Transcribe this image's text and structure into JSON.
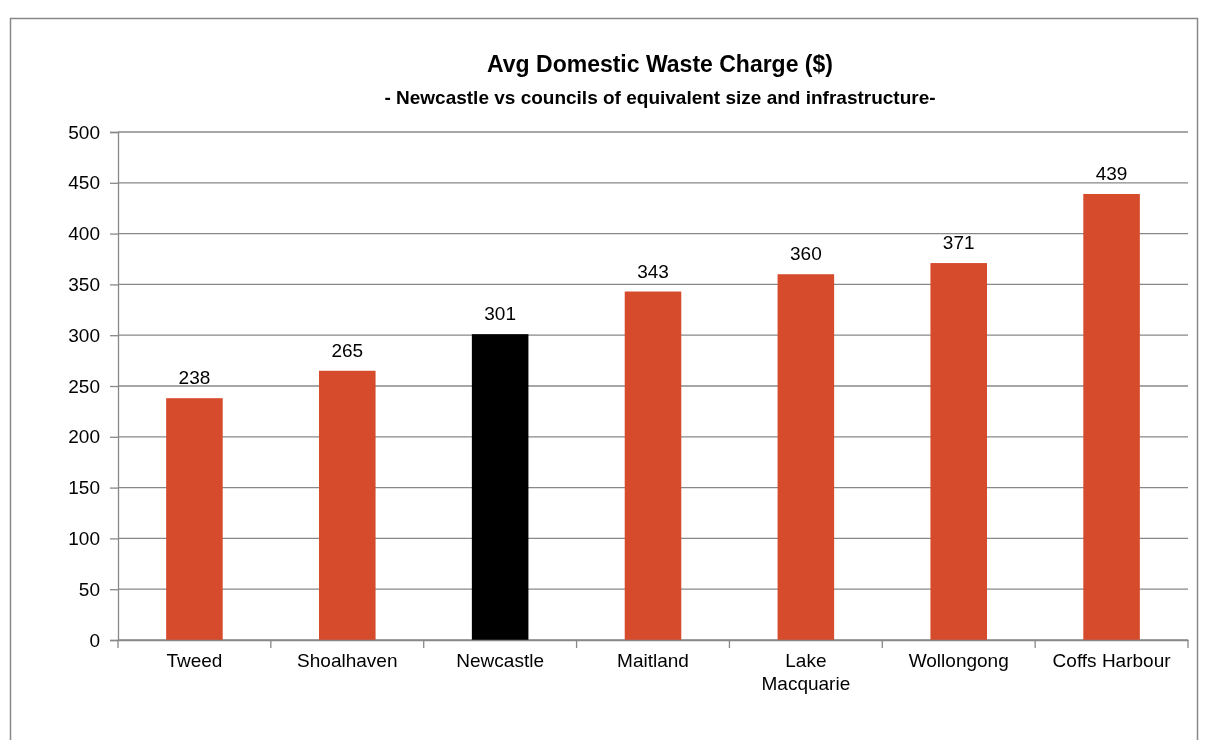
{
  "chart_data": {
    "type": "bar",
    "title": "Avg Domestic Waste Charge ($)",
    "subtitle": "- Newcastle vs councils of equivalent size and infrastructure-",
    "categories": [
      "Tweed",
      "Shoalhaven",
      "Newcastle",
      "Maitland",
      "Lake Macquarie",
      "Wollongong",
      "Coffs Harbour"
    ],
    "values": [
      238,
      265,
      301,
      343,
      360,
      371,
      439
    ],
    "colors": [
      "#d54b2b",
      "#d54b2b",
      "#000000",
      "#d54b2b",
      "#d54b2b",
      "#d54b2b",
      "#d54b2b"
    ],
    "ylim": [
      0,
      500
    ],
    "yticks": [
      0,
      50,
      100,
      150,
      200,
      250,
      300,
      350,
      400,
      450,
      500
    ],
    "grid": "y",
    "data_labels": true
  }
}
